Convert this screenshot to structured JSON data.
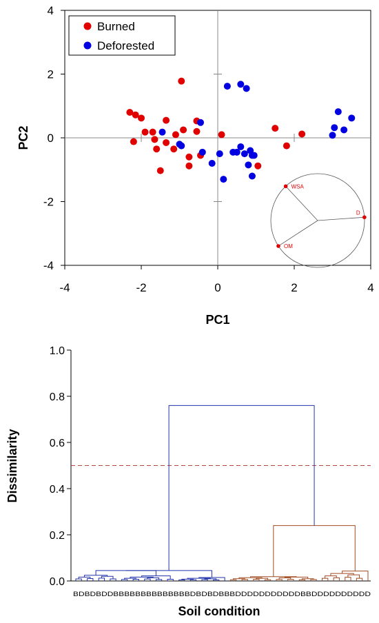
{
  "chart_data": [
    {
      "type": "scatter",
      "xlabel": "PC1",
      "ylabel": "PC2",
      "xlim": [
        -4,
        4
      ],
      "ylim": [
        -4,
        4
      ],
      "xticks": [
        "-4",
        "-2",
        "0",
        "2",
        "4"
      ],
      "yticks": [
        "-4",
        "-2",
        "0",
        "2",
        "4"
      ],
      "legend_position": "top-left",
      "grid": false,
      "series": [
        {
          "name": "Burned",
          "color": "#e00000",
          "points": [
            [
              -2.3,
              0.8
            ],
            [
              -2.15,
              0.72
            ],
            [
              -2.0,
              0.62
            ],
            [
              -2.2,
              -0.12
            ],
            [
              -1.9,
              0.18
            ],
            [
              -1.7,
              0.18
            ],
            [
              -1.65,
              -0.05
            ],
            [
              -1.6,
              -0.35
            ],
            [
              -1.5,
              -1.03
            ],
            [
              -1.35,
              0.55
            ],
            [
              -1.35,
              -0.15
            ],
            [
              -1.15,
              -0.35
            ],
            [
              -1.1,
              0.1
            ],
            [
              -0.95,
              1.78
            ],
            [
              -0.9,
              0.25
            ],
            [
              -0.75,
              -0.6
            ],
            [
              -0.75,
              -0.88
            ],
            [
              -0.55,
              0.53
            ],
            [
              -0.55,
              0.2
            ],
            [
              -0.45,
              -0.55
            ],
            [
              0.1,
              0.1
            ],
            [
              1.05,
              -0.88
            ],
            [
              1.5,
              0.3
            ],
            [
              1.8,
              -0.25
            ],
            [
              2.2,
              0.12
            ]
          ]
        },
        {
          "name": "Deforested",
          "color": "#0000e0",
          "points": [
            [
              -1.45,
              0.18
            ],
            [
              -1.0,
              -0.2
            ],
            [
              -0.95,
              -0.25
            ],
            [
              -0.45,
              0.48
            ],
            [
              -0.4,
              -0.45
            ],
            [
              -0.15,
              -0.8
            ],
            [
              0.05,
              -0.5
            ],
            [
              0.15,
              -1.3
            ],
            [
              0.25,
              1.62
            ],
            [
              0.4,
              -0.45
            ],
            [
              0.5,
              -0.45
            ],
            [
              0.6,
              1.68
            ],
            [
              0.6,
              -0.28
            ],
            [
              0.7,
              -0.5
            ],
            [
              0.75,
              1.55
            ],
            [
              0.8,
              -0.85
            ],
            [
              0.85,
              -0.4
            ],
            [
              0.9,
              -0.55
            ],
            [
              0.95,
              -0.55
            ],
            [
              0.9,
              -1.2
            ],
            [
              3.0,
              0.08
            ],
            [
              3.05,
              0.32
            ],
            [
              3.15,
              0.82
            ],
            [
              3.3,
              0.25
            ],
            [
              3.5,
              0.62
            ]
          ]
        }
      ],
      "inset_biplot": {
        "vectors": [
          {
            "label": "WSA",
            "angle_deg": 133
          },
          {
            "label": "D",
            "angle_deg": 4
          },
          {
            "label": "OM",
            "angle_deg": 213
          }
        ]
      }
    },
    {
      "type": "dendrogram",
      "xlabel": "Soil condition",
      "ylabel": "Dissimilarity",
      "ylim": [
        0,
        1
      ],
      "yticks": [
        "0.0",
        "0.2",
        "0.4",
        "0.6",
        "0.8",
        "1.0"
      ],
      "cut_line": 0.5,
      "leaf_labels": "BDBDBDDBBBBBBBBBBBBBBDBDBDBBBDDDDDDDDDDDBBDDDDDDDDDD",
      "root_height": 0.76,
      "clusters": [
        {
          "color": "#2233aa",
          "height": 0.04,
          "subclusters": [
            {
              "height": 0.045
            },
            {
              "height": 0.03
            },
            {
              "height": 0.02
            }
          ]
        },
        {
          "color": "#a04a20",
          "height": 0.24,
          "subclusters": [
            {
              "height": 0.025
            },
            {
              "height": 0.06
            }
          ]
        }
      ]
    }
  ]
}
